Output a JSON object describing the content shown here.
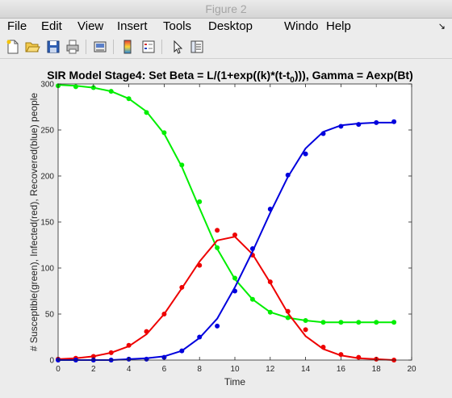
{
  "window": {
    "title": "Figure 2"
  },
  "menu": {
    "items": [
      "File",
      "Edit",
      "View",
      "Insert",
      "Tools",
      "Desktop",
      "Windo",
      "Help"
    ],
    "overflow_icon": "double-chevron-right-icon"
  },
  "toolbar": {
    "icons": [
      "new-figure-icon",
      "open-file-icon",
      "save-icon",
      "print-icon",
      "link-plot-icon",
      "colorbar-icon",
      "legend-icon",
      "pointer-icon",
      "property-editor-icon"
    ]
  },
  "colors": {
    "susceptible": "#00ee00",
    "infected": "#ee0000",
    "recovered": "#0000dd",
    "axes_bg": "#ffffff",
    "figure_bg": "#ececec"
  },
  "chart_data": {
    "type": "line",
    "title": {
      "main": "SIR Model Stage4: Set Beta = L/(1+exp((k)*(t-t",
      "sub": "0",
      "end": "))), Gamma = Aexp(Bt)"
    },
    "xlabel": "Time",
    "ylabel": "# Susceptible(green), Infected(red), Recovered(blue) people",
    "xlim": [
      0,
      20
    ],
    "ylim": [
      0,
      300
    ],
    "xticks": [
      0,
      2,
      4,
      6,
      8,
      10,
      12,
      14,
      16,
      18,
      20
    ],
    "yticks": [
      0,
      50,
      100,
      150,
      200,
      250,
      300
    ],
    "grid": false,
    "series": [
      {
        "key": "susceptible",
        "color": "#00ee00",
        "points_x": [
          0,
          1,
          2,
          3,
          4,
          5,
          6,
          7,
          8,
          9,
          10,
          11,
          12,
          13,
          14,
          15,
          16,
          17,
          18,
          19
        ],
        "points_y": [
          298,
          297,
          296,
          292,
          284,
          269,
          247,
          212,
          172,
          122,
          89,
          66,
          52,
          46,
          43,
          41,
          41,
          41,
          41,
          41
        ],
        "line_x": [
          0,
          1,
          2,
          3,
          4,
          5,
          6,
          7,
          8,
          9,
          10,
          11,
          12,
          13,
          14,
          15,
          16,
          17,
          18,
          19
        ],
        "line_y": [
          299,
          298,
          296,
          292,
          284,
          270,
          246,
          210,
          165,
          121,
          88,
          66,
          52,
          46,
          43,
          41,
          41,
          41,
          41,
          41
        ]
      },
      {
        "key": "infected",
        "color": "#ee0000",
        "points_x": [
          0,
          1,
          2,
          3,
          4,
          5,
          6,
          7,
          8,
          9,
          10,
          11,
          12,
          13,
          14,
          15,
          16,
          17,
          18,
          19
        ],
        "points_y": [
          1,
          2,
          4,
          8,
          16,
          31,
          50,
          79,
          103,
          141,
          136,
          114,
          85,
          53,
          33,
          14,
          6,
          3,
          1,
          0
        ],
        "line_x": [
          0,
          1,
          2,
          3,
          4,
          5,
          6,
          7,
          8,
          9,
          10,
          11,
          12,
          13,
          14,
          15,
          16,
          17,
          18,
          19
        ],
        "line_y": [
          1,
          2,
          4,
          8,
          15,
          28,
          50,
          78,
          107,
          130,
          134,
          115,
          84,
          51,
          26,
          12,
          5,
          2,
          1,
          0
        ]
      },
      {
        "key": "recovered",
        "color": "#0000dd",
        "points_x": [
          0,
          1,
          2,
          3,
          4,
          5,
          6,
          7,
          8,
          9,
          10,
          11,
          12,
          13,
          14,
          15,
          16,
          17,
          18,
          19
        ],
        "points_y": [
          0,
          0,
          0,
          0,
          1,
          1,
          3,
          10,
          25,
          37,
          75,
          121,
          164,
          201,
          224,
          246,
          254,
          256,
          258,
          259
        ],
        "line_x": [
          0,
          1,
          2,
          3,
          4,
          5,
          6,
          7,
          8,
          9,
          10,
          11,
          12,
          13,
          14,
          15,
          16,
          17,
          18,
          19
        ],
        "line_y": [
          0,
          0,
          0,
          0,
          1,
          2,
          4,
          10,
          24,
          45,
          79,
          118,
          160,
          199,
          230,
          248,
          255,
          257,
          258,
          258
        ]
      }
    ]
  }
}
